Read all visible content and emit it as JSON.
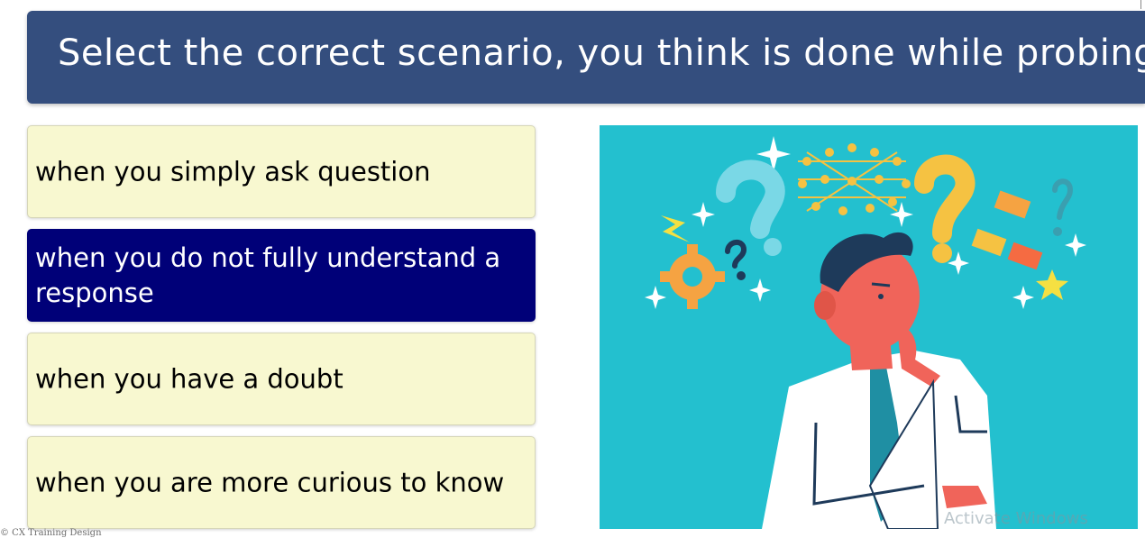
{
  "title": "Select the correct scenario, you think is done while probing..",
  "options": [
    {
      "label": "when you simply ask question",
      "selected": false
    },
    {
      "label": "when you do not fully understand a response",
      "selected": true
    },
    {
      "label": "when you have a doubt",
      "selected": false
    },
    {
      "label": "when you are more curious to know",
      "selected": false
    }
  ],
  "illustration": {
    "icon": "thinking-man-with-question-marks-illustration",
    "background_color": "#23c0cf"
  },
  "copyright": "© CX Training Design",
  "watermark": "Activate Windows",
  "colors": {
    "title_bar": "#344e7e",
    "option_bg": "#f8f8d0",
    "option_selected_bg": "#000078"
  }
}
